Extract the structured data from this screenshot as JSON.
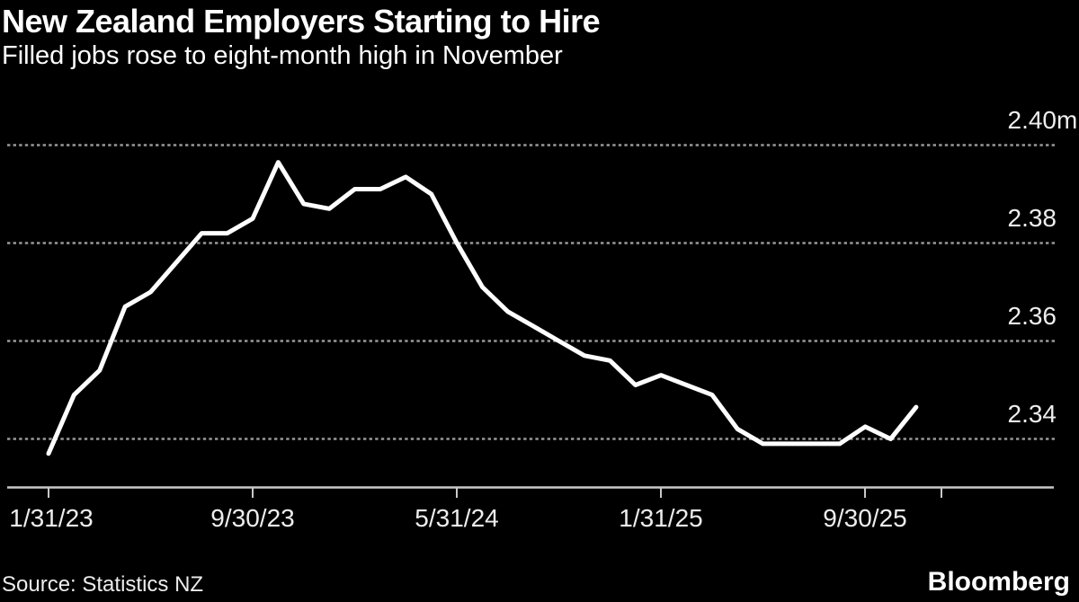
{
  "header": {
    "title": "New Zealand Employers Starting to Hire",
    "subtitle": "Filled jobs rose to eight-month high in November"
  },
  "chart_data": {
    "type": "line",
    "title": "New Zealand Employers Starting to Hire",
    "subtitle": "Filled jobs rose to eight-month high in November",
    "series_name": "Filled jobs (millions)",
    "unit": "millions",
    "x": [
      "1/31/23",
      "2/28/23",
      "3/31/23",
      "4/30/23",
      "5/31/23",
      "6/30/23",
      "7/31/23",
      "8/31/23",
      "9/30/23",
      "10/31/23",
      "11/30/23",
      "12/31/23",
      "1/31/24",
      "2/29/24",
      "3/31/24",
      "4/30/24",
      "5/31/24",
      "6/30/24",
      "7/31/24",
      "8/31/24",
      "9/30/24",
      "10/31/24",
      "11/30/24",
      "12/31/24",
      "1/31/25",
      "2/28/25",
      "3/31/25",
      "4/30/25",
      "5/31/25",
      "6/30/25",
      "7/31/25",
      "8/31/25",
      "9/30/25",
      "10/31/25",
      "11/30/25"
    ],
    "values": [
      2.337,
      2.349,
      2.354,
      2.367,
      2.37,
      2.376,
      2.382,
      2.382,
      2.385,
      2.3965,
      2.388,
      2.387,
      2.391,
      2.391,
      2.3935,
      2.39,
      2.38,
      2.371,
      2.366,
      2.363,
      2.36,
      2.357,
      2.356,
      2.351,
      2.353,
      2.351,
      2.349,
      2.342,
      2.339,
      2.339,
      2.339,
      2.339,
      2.3425,
      2.34,
      2.3465
    ],
    "y_gridlines": [
      2.4,
      2.38,
      2.36,
      2.34
    ],
    "xtick_labels": [
      "1/31/23",
      "9/30/23",
      "5/31/24",
      "1/31/25",
      "9/30/25"
    ],
    "ylim": [
      2.33,
      2.41
    ],
    "grid": "dashed-horizontal",
    "legend": "none",
    "line_color": "#ffffff",
    "background": "#000000"
  },
  "yaxis": {
    "labels": [
      {
        "value": "2.40",
        "suffix": "m"
      },
      {
        "value": "2.38",
        "suffix": ""
      },
      {
        "value": "2.36",
        "suffix": ""
      },
      {
        "value": "2.34",
        "suffix": ""
      }
    ]
  },
  "xaxis": {
    "labels": [
      "1/31/23",
      "9/30/23",
      "5/31/24",
      "1/31/25",
      "9/30/25"
    ]
  },
  "footer": {
    "source": "Source: Statistics NZ",
    "brand": "Bloomberg"
  }
}
